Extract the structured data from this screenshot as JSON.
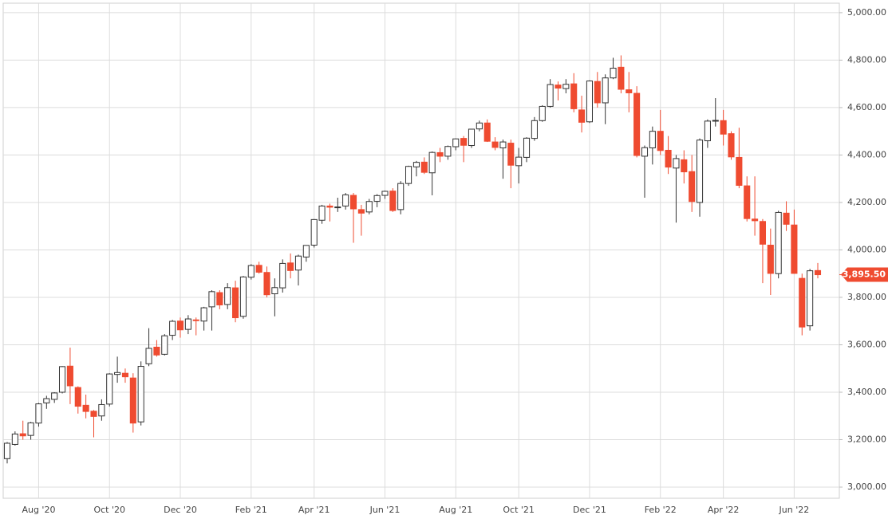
{
  "chart_data": {
    "type": "candlestick",
    "categories": [
      null,
      null,
      null,
      null,
      "Aug '20",
      null,
      null,
      null,
      null,
      null,
      null,
      null,
      null,
      "Oct '20",
      null,
      null,
      null,
      null,
      null,
      null,
      null,
      null,
      "Dec '20",
      null,
      null,
      null,
      null,
      null,
      null,
      null,
      null,
      "Feb '21",
      null,
      null,
      null,
      null,
      null,
      null,
      null,
      "Apr '21",
      null,
      null,
      null,
      null,
      null,
      null,
      null,
      null,
      "Jun '21",
      null,
      null,
      null,
      null,
      null,
      null,
      null,
      null,
      "Aug '21",
      null,
      null,
      null,
      null,
      null,
      null,
      null,
      "Oct '21",
      null,
      null,
      null,
      null,
      null,
      null,
      null,
      null,
      "Dec '21",
      null,
      null,
      null,
      null,
      null,
      null,
      null,
      null,
      "Feb '22",
      null,
      null,
      null,
      null,
      null,
      null,
      null,
      "Apr '22",
      null,
      null,
      null,
      null,
      null,
      null,
      null,
      null,
      "Jun '22",
      null,
      null,
      null
    ],
    "open": [
      3120,
      3180,
      3225,
      3218,
      3270,
      3355,
      3370,
      3400,
      3510,
      3420,
      3345,
      3320,
      3300,
      3350,
      3475,
      3480,
      3460,
      3275,
      3520,
      3590,
      3560,
      3640,
      3700,
      3665,
      3705,
      3700,
      3760,
      3820,
      3770,
      3840,
      3720,
      3885,
      3935,
      3905,
      3815,
      3840,
      3945,
      3915,
      3970,
      4020,
      4125,
      4185,
      4180,
      4185,
      4230,
      4170,
      4160,
      4205,
      4230,
      4248,
      4170,
      4280,
      4350,
      4370,
      4325,
      4410,
      4395,
      4435,
      4470,
      4440,
      4510,
      4535,
      4455,
      4430,
      4450,
      4355,
      4390,
      4470,
      4545,
      4605,
      4695,
      4680,
      4700,
      4590,
      4540,
      4710,
      4620,
      4725,
      4770,
      4675,
      4660,
      4395,
      4430,
      4500,
      4420,
      4345,
      4380,
      4330,
      4200,
      4460,
      4545,
      4545,
      4490,
      4390,
      4270,
      4130,
      4120,
      4020,
      3900,
      4155,
      4105,
      3880,
      3680,
      3913
    ],
    "high": [
      3190,
      3235,
      3280,
      3275,
      3355,
      3385,
      3400,
      3510,
      3588,
      3425,
      3390,
      3325,
      3370,
      3480,
      3550,
      3500,
      3480,
      3530,
      3670,
      3620,
      3645,
      3705,
      3715,
      3725,
      3715,
      3760,
      3830,
      3830,
      3860,
      3870,
      3890,
      3940,
      3950,
      3930,
      3880,
      3960,
      3985,
      3980,
      4020,
      4130,
      4190,
      4195,
      4220,
      4240,
      4240,
      4190,
      4215,
      4235,
      4250,
      4260,
      4290,
      4355,
      4375,
      4390,
      4415,
      4430,
      4440,
      4470,
      4480,
      4510,
      4545,
      4550,
      4475,
      4465,
      4465,
      4430,
      4475,
      4560,
      4610,
      4720,
      4710,
      4720,
      4745,
      4650,
      4715,
      4750,
      4740,
      4810,
      4820,
      4750,
      4690,
      4440,
      4520,
      4590,
      4480,
      4400,
      4420,
      4400,
      4470,
      4550,
      4640,
      4590,
      4500,
      4515,
      4310,
      4310,
      4130,
      4090,
      4165,
      4205,
      4170,
      3900,
      3920,
      3945
    ],
    "low": [
      3100,
      3175,
      3200,
      3200,
      3255,
      3330,
      3355,
      3395,
      3350,
      3310,
      3290,
      3210,
      3280,
      3340,
      3440,
      3440,
      3230,
      3260,
      3510,
      3550,
      3555,
      3620,
      3630,
      3645,
      3640,
      3660,
      3660,
      3750,
      3750,
      3695,
      3710,
      3875,
      3900,
      3800,
      3720,
      3820,
      3880,
      3850,
      3950,
      4010,
      4110,
      4120,
      4160,
      4170,
      4030,
      4060,
      4150,
      4180,
      4215,
      4160,
      4150,
      4270,
      4310,
      4320,
      4230,
      4370,
      4380,
      4420,
      4370,
      4430,
      4500,
      4455,
      4420,
      4300,
      4260,
      4280,
      4370,
      4460,
      4540,
      4600,
      4630,
      4660,
      4580,
      4495,
      4535,
      4600,
      4530,
      4720,
      4660,
      4580,
      4390,
      4220,
      4360,
      4400,
      4320,
      4115,
      4280,
      4160,
      4140,
      4430,
      4520,
      4440,
      4380,
      4260,
      4120,
      4060,
      3860,
      3810,
      3880,
      4080,
      3900,
      3640,
      3660,
      3880
    ],
    "close": [
      3185,
      3224,
      3216,
      3271,
      3351,
      3373,
      3397,
      3508,
      3427,
      3341,
      3319,
      3298,
      3348,
      3477,
      3483,
      3465,
      3270,
      3509,
      3585,
      3557,
      3638,
      3699,
      3663,
      3709,
      3703,
      3756,
      3824,
      3768,
      3841,
      3714,
      3886,
      3934,
      3906,
      3811,
      3841,
      3943,
      3913,
      3974,
      4019,
      4128,
      4185,
      4180,
      4181,
      4232,
      4173,
      4155,
      4204,
      4229,
      4247,
      4166,
      4280,
      4352,
      4369,
      4327,
      4411,
      4395,
      4436,
      4468,
      4441,
      4509,
      4535,
      4458,
      4432,
      4455,
      4357,
      4391,
      4471,
      4545,
      4605,
      4697,
      4682,
      4698,
      4595,
      4538,
      4712,
      4620,
      4725,
      4766,
      4677,
      4662,
      4398,
      4431,
      4500,
      4419,
      4349,
      4385,
      4329,
      4204,
      4463,
      4543,
      4546,
      4488,
      4392,
      4272,
      4132,
      4123,
      4024,
      3901,
      4158,
      4108,
      3901,
      3675,
      3912,
      3895.5
    ],
    "up_color": "#ffffff",
    "down_color": "#ef4b30",
    "ylim": [
      2953,
      5040
    ],
    "yticks": [
      {
        "value": 3000,
        "label": "3,000.00"
      },
      {
        "value": 3200,
        "label": "3,200.00"
      },
      {
        "value": 3400,
        "label": "3,400.00"
      },
      {
        "value": 3600,
        "label": "3,600.00"
      },
      {
        "value": 3800,
        "label": "3,800.00"
      },
      {
        "value": 4000,
        "label": "4,000.00"
      },
      {
        "value": 4200,
        "label": "4,200.00"
      },
      {
        "value": 4400,
        "label": "4,400.00"
      },
      {
        "value": 4600,
        "label": "4,600.00"
      },
      {
        "value": 4800,
        "label": "4,800.00"
      },
      {
        "value": 5000,
        "label": "5,000.00"
      }
    ],
    "last_price": {
      "value": 3895.5,
      "label": "3,895.50"
    },
    "grid": true
  }
}
